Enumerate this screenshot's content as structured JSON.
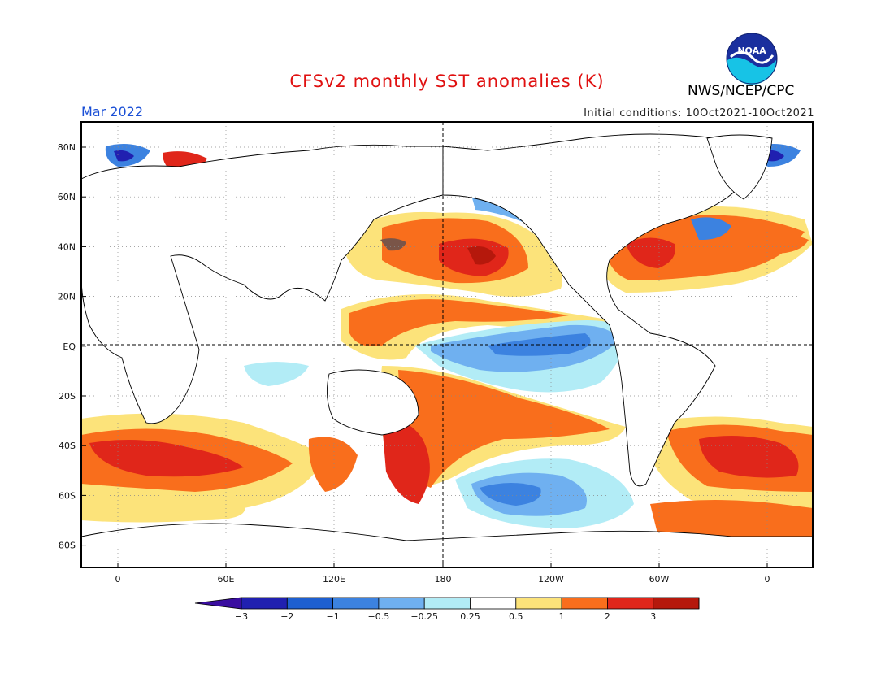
{
  "header": {
    "title": "CFSv2 monthly SST anomalies (K)",
    "agency": "NWS/NCEP/CPC",
    "valid_month": "Mar 2022",
    "initial_conditions": "Initial conditions: 10Oct2021-10Oct2021",
    "logo_text": "NOAA"
  },
  "axes": {
    "lat_labels": [
      "80N",
      "60N",
      "40N",
      "20N",
      "EQ",
      "20S",
      "40S",
      "60S",
      "80S"
    ],
    "lon_labels": [
      "0",
      "60E",
      "120E",
      "180",
      "120W",
      "60W",
      "0"
    ]
  },
  "colorbar": {
    "labels": [
      "−3",
      "−2",
      "−1",
      "−0.5",
      "−0.25",
      "0.25",
      "0.5",
      "1",
      "2",
      "3"
    ],
    "colors": [
      "#2020b0",
      "#1e5fd0",
      "#3c82e0",
      "#6fb0f0",
      "#b2ecf6",
      "#ffffff",
      "#fce37a",
      "#f96e1c",
      "#e0261a",
      "#b5180c"
    ],
    "under_color": "#3a0ea0",
    "over_color": "#7a5548"
  },
  "colors": {
    "title": "#e01010",
    "valid_month": "#1a4fd6",
    "land_outline": "#000000",
    "grid": "#888888"
  }
}
